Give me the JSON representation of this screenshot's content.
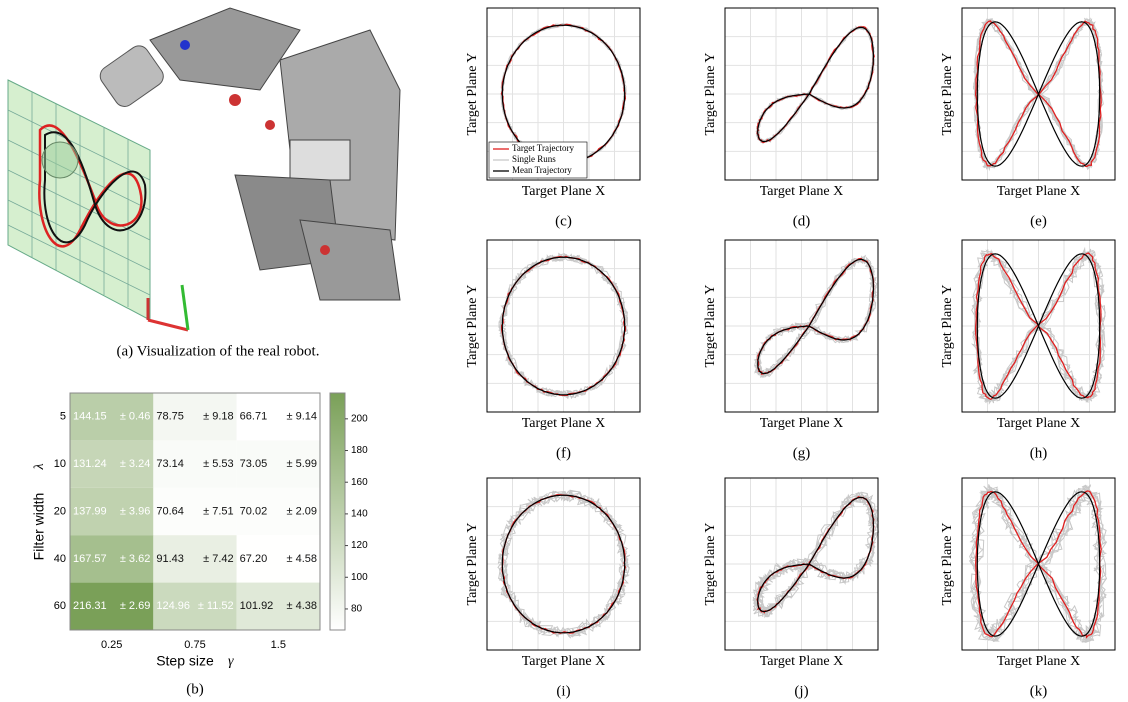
{
  "panel_a": {
    "caption": "(a) Visualization of the real robot."
  },
  "heatmap": {
    "y_label": "Filter width",
    "y_symbol": "λ",
    "x_label": "Step size",
    "x_symbol": "γ",
    "rows": [
      5,
      10,
      20,
      40,
      60
    ],
    "columns": [
      0.25,
      0.75,
      1.5
    ],
    "cells": [
      [
        {
          "mean": "144.15",
          "std": "± 0.46"
        },
        {
          "mean": "78.75",
          "std": "± 9.18"
        },
        {
          "mean": "66.71",
          "std": "± 9.14"
        }
      ],
      [
        {
          "mean": "131.24",
          "std": "± 3.24"
        },
        {
          "mean": "73.14",
          "std": "± 5.53"
        },
        {
          "mean": "73.05",
          "std": "± 5.99"
        }
      ],
      [
        {
          "mean": "137.99",
          "std": "± 3.96"
        },
        {
          "mean": "70.64",
          "std": "± 7.51"
        },
        {
          "mean": "70.02",
          "std": "± 2.09"
        }
      ],
      [
        {
          "mean": "167.57",
          "std": "± 3.62"
        },
        {
          "mean": "91.43",
          "std": "± 7.42"
        },
        {
          "mean": "67.20",
          "std": "± 4.58"
        }
      ],
      [
        {
          "mean": "216.31",
          "std": "± 2.69"
        },
        {
          "mean": "124.96",
          "std": "± 11.52"
        },
        {
          "mean": "101.92",
          "std": "± 4.38"
        }
      ]
    ],
    "colorbar_ticks": [
      80,
      100,
      120,
      140,
      160,
      180,
      200
    ],
    "caption": "(b)"
  },
  "trajectory_panels": {
    "x_label": "Target Plane X",
    "y_label": "Target Plane Y",
    "legend": [
      "Target Trajectory",
      "Single Runs",
      "Mean Trajectory"
    ],
    "panels": [
      {
        "caption": "(c)"
      },
      {
        "caption": "(d)"
      },
      {
        "caption": "(e)"
      },
      {
        "caption": "(f)"
      },
      {
        "caption": "(g)"
      },
      {
        "caption": "(h)"
      },
      {
        "caption": "(i)"
      },
      {
        "caption": "(j)"
      },
      {
        "caption": "(k)"
      }
    ]
  }
}
